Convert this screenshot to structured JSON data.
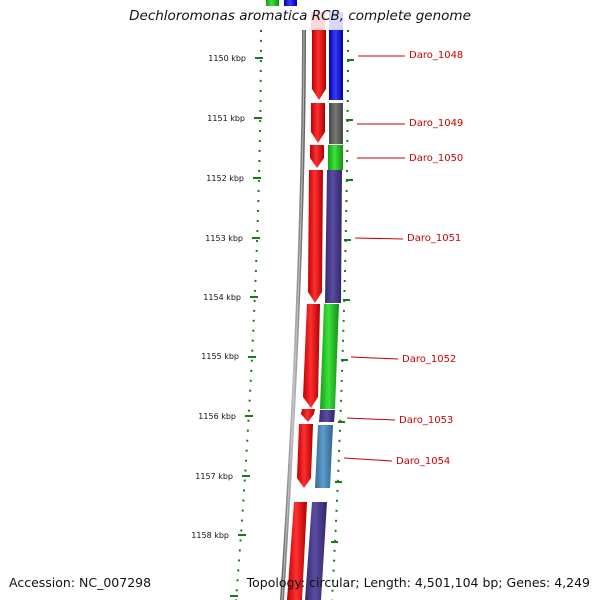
{
  "header": {
    "title": "Dechloromonas aromatica RCB, complete genome"
  },
  "footer": {
    "accession": "Accession: NC_007298",
    "topology": "Topology: circular; Length: 4,501,104 bp; Genes: 4,249"
  },
  "ruler": {
    "tick_labels": [
      "1150 kbp",
      "1151 kbp",
      "1152 kbp",
      "1153 kbp",
      "1154 kbp",
      "1155 kbp",
      "1156 kbp",
      "1157 kbp",
      "1158 kbp"
    ]
  },
  "genes": [
    {
      "label": "Daro_1048",
      "cog_color": "#1010ee"
    },
    {
      "label": "Daro_1049",
      "cog_color": "#666666"
    },
    {
      "label": "Daro_1050",
      "cog_color": "#22cc22"
    },
    {
      "label": "Daro_1051",
      "cog_color": "#4a3d8f"
    },
    {
      "label": "Daro_1052",
      "cog_color": "#22cc22"
    },
    {
      "label": "Daro_1053",
      "cog_color": "#4a3d8f"
    },
    {
      "label": "Daro_1054",
      "cog_color": "#4a86b8"
    }
  ],
  "colors": {
    "cds_strand": "#ee0000",
    "label_text": "#cc0000",
    "tick": "#1a7a1a",
    "backbone": "#888888"
  }
}
